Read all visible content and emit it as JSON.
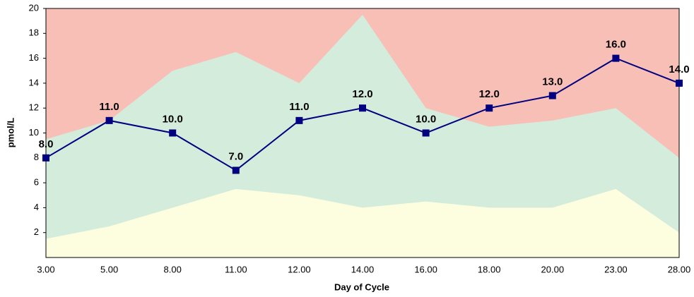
{
  "chart_data": {
    "type": "line",
    "x_label": "Day of Cycle",
    "y_label": "pmol/L",
    "categories": [
      "3.00",
      "5.00",
      "8.00",
      "11.00",
      "12.00",
      "14.00",
      "16.00",
      "18.00",
      "20.00",
      "23.00",
      "28.00"
    ],
    "ylim": [
      0,
      20
    ],
    "yticks": [
      2,
      4,
      6,
      8,
      10,
      12,
      14,
      16,
      18,
      20
    ],
    "background": "#f8bfb6",
    "bands": [
      {
        "color": "#d3ecdc",
        "values": [
          9.5,
          11,
          15,
          16.5,
          14,
          19.5,
          12,
          10.5,
          11,
          12,
          8
        ]
      },
      {
        "color": "#fdfde0",
        "values": [
          1.5,
          2.5,
          4,
          5.5,
          5,
          4,
          4.5,
          4,
          4,
          5.5,
          2
        ]
      }
    ],
    "series": [
      {
        "color": "#000080",
        "values": [
          8,
          11,
          10,
          7,
          11,
          12,
          10,
          12,
          13,
          16,
          14
        ],
        "value_labels": [
          "8.0",
          "11.0",
          "10.0",
          "7.0",
          "11.0",
          "12.0",
          "10.0",
          "12.0",
          "13.0",
          "16.0",
          "14.0"
        ]
      }
    ]
  }
}
